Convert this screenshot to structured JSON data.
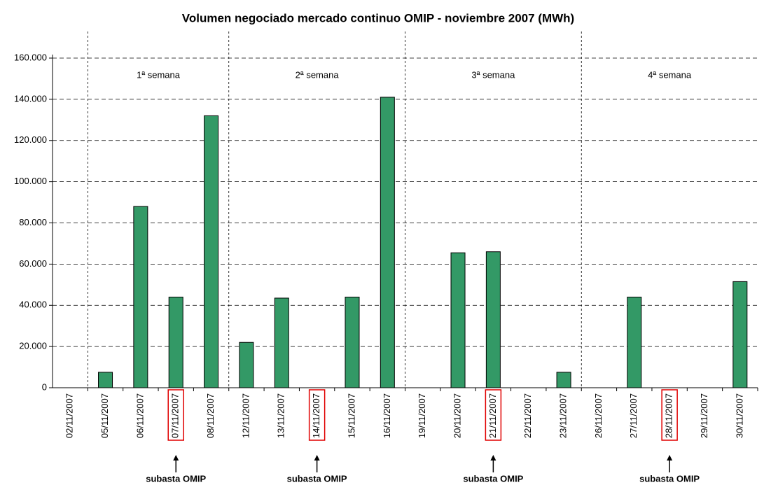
{
  "chart_data": {
    "type": "bar",
    "title": "Volumen negociado mercado continuo OMIP - noviembre 2007 (MWh)",
    "categories": [
      "02/11/2007",
      "05/11/2007",
      "06/11/2007",
      "07/11/2007",
      "08/11/2007",
      "12/11/2007",
      "13/11/2007",
      "14/11/2007",
      "15/11/2007",
      "16/11/2007",
      "19/11/2007",
      "20/11/2007",
      "21/11/2007",
      "22/11/2007",
      "23/11/2007",
      "26/11/2007",
      "27/11/2007",
      "28/11/2007",
      "29/11/2007",
      "30/11/2007"
    ],
    "values": [
      0,
      7500,
      88000,
      44000,
      132000,
      22000,
      43500,
      0,
      44000,
      141000,
      0,
      65500,
      66000,
      0,
      7500,
      0,
      44000,
      0,
      0,
      51500
    ],
    "color": "#339966",
    "ylim": [
      0,
      160000
    ],
    "yticks": [
      0,
      {
        "value": 20000,
        "label": "20.000"
      },
      {
        "value": 40000,
        "label": "40.000"
      },
      {
        "value": 60000,
        "label": "60.000"
      },
      {
        "value": 80000,
        "label": "80.000"
      },
      {
        "value": 100000,
        "label": "100.000"
      },
      {
        "value": 120000,
        "label": "120.000"
      },
      {
        "value": 140000,
        "label": "140.000"
      },
      {
        "value": 160000,
        "label": "160.000"
      }
    ],
    "grid": true,
    "weeks": [
      "1ª semana",
      "2ª semana",
      "3ª semana",
      "4ª semana"
    ],
    "annotation": "subasta OMIP"
  }
}
